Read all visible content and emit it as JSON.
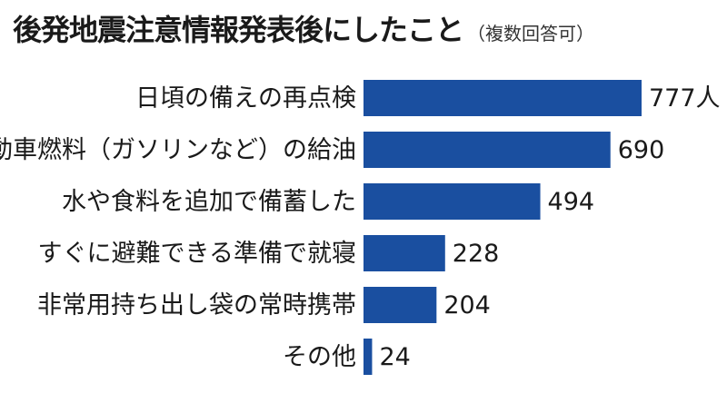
{
  "chart_data": {
    "type": "bar",
    "orientation": "horizontal",
    "title": "後発地震注意情報発表後にしたこと",
    "subtitle": "（複数回答可）",
    "categories": [
      "日頃の備えの再点検",
      "自動車燃料（ガソリンなど）の給油",
      "水や食料を追加で備蓄した",
      "すぐに避難できる準備で就寝",
      "非常用持ち出し袋の常時携帯",
      "その他"
    ],
    "values": [
      777,
      690,
      494,
      228,
      204,
      24
    ],
    "value_labels": [
      "777人",
      "690",
      "494",
      "228",
      "204",
      "24"
    ],
    "xlim": [
      0,
      777
    ],
    "bar_color": "#1a4fa0",
    "grid": false,
    "legend": "none"
  }
}
